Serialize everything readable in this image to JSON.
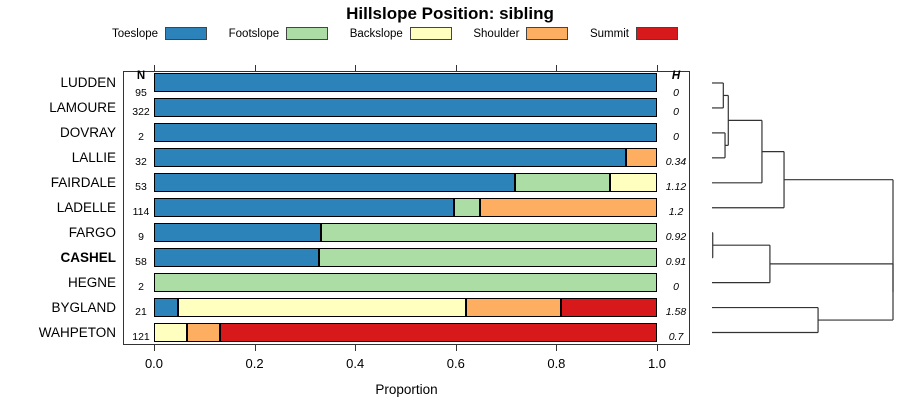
{
  "title": "Hillslope Position: sibling",
  "xlabel": "Proportion",
  "n_header": "N",
  "h_header": "H",
  "legend": [
    {
      "label": "Toeslope",
      "color": "#2B83BA"
    },
    {
      "label": "Footslope",
      "color": "#ABDDA4"
    },
    {
      "label": "Backslope",
      "color": "#FFFFBF"
    },
    {
      "label": "Shoulder",
      "color": "#FDAE61"
    },
    {
      "label": "Summit",
      "color": "#D7191C"
    }
  ],
  "chart_data": {
    "type": "bar",
    "subtype": "horizontal-stacked-proportion",
    "title": "Hillslope Position: sibling",
    "xlabel": "Proportion",
    "xlim": [
      0,
      1
    ],
    "x_ticks": [
      "0.0",
      "0.2",
      "0.4",
      "0.6",
      "0.8",
      "1.0"
    ],
    "categories": [
      "Toeslope",
      "Footslope",
      "Backslope",
      "Shoulder",
      "Summit"
    ],
    "colors": {
      "Toeslope": "#2B83BA",
      "Footslope": "#ABDDA4",
      "Backslope": "#FFFFBF",
      "Shoulder": "#FDAE61",
      "Summit": "#D7191C"
    },
    "rows": [
      {
        "name": "LUDDEN",
        "n": "95",
        "h": "0",
        "bold": false,
        "segments": [
          [
            "Toeslope",
            1.0
          ]
        ]
      },
      {
        "name": "LAMOURE",
        "n": "322",
        "h": "0",
        "bold": false,
        "segments": [
          [
            "Toeslope",
            1.0
          ]
        ]
      },
      {
        "name": "DOVRAY",
        "n": "2",
        "h": "0",
        "bold": false,
        "segments": [
          [
            "Toeslope",
            1.0
          ]
        ]
      },
      {
        "name": "LALLIE",
        "n": "32",
        "h": "0.34",
        "bold": false,
        "segments": [
          [
            "Toeslope",
            0.9375
          ],
          [
            "Shoulder",
            0.0625
          ]
        ]
      },
      {
        "name": "FAIRDALE",
        "n": "53",
        "h": "1.12",
        "bold": false,
        "segments": [
          [
            "Toeslope",
            0.717
          ],
          [
            "Footslope",
            0.189
          ],
          [
            "Backslope",
            0.094
          ]
        ]
      },
      {
        "name": "LADELLE",
        "n": "114",
        "h": "1.2",
        "bold": false,
        "segments": [
          [
            "Toeslope",
            0.596
          ],
          [
            "Footslope",
            0.053
          ],
          [
            "Shoulder",
            0.351
          ]
        ]
      },
      {
        "name": "FARGO",
        "n": "9",
        "h": "0.92",
        "bold": false,
        "segments": [
          [
            "Toeslope",
            0.333
          ],
          [
            "Footslope",
            0.667
          ]
        ]
      },
      {
        "name": "CASHEL",
        "n": "58",
        "h": "0.91",
        "bold": true,
        "segments": [
          [
            "Toeslope",
            0.328
          ],
          [
            "Footslope",
            0.672
          ]
        ]
      },
      {
        "name": "HEGNE",
        "n": "2",
        "h": "0",
        "bold": false,
        "segments": [
          [
            "Footslope",
            1.0
          ]
        ]
      },
      {
        "name": "BYGLAND",
        "n": "21",
        "h": "1.58",
        "bold": false,
        "segments": [
          [
            "Toeslope",
            0.048
          ],
          [
            "Backslope",
            0.572
          ],
          [
            "Shoulder",
            0.19
          ],
          [
            "Summit",
            0.19
          ]
        ]
      },
      {
        "name": "WAHPETON",
        "n": "121",
        "h": "0.7",
        "bold": false,
        "segments": [
          [
            "Backslope",
            0.066
          ],
          [
            "Shoulder",
            0.066
          ],
          [
            "Summit",
            0.868
          ]
        ]
      }
    ],
    "dendrogram": {
      "orientation": "right",
      "merges": [
        {
          "id": "m1",
          "a": "LUDDEN",
          "b": "LAMOURE",
          "h": 0.0625
        },
        {
          "id": "m2",
          "a": "DOVRAY",
          "b": "LALLIE",
          "h": 0.072
        },
        {
          "id": "m3",
          "a": "m1",
          "b": "m2",
          "h": 0.09
        },
        {
          "id": "m4",
          "a": "m3",
          "b": "FAIRDALE",
          "h": 0.276
        },
        {
          "id": "m5",
          "a": "m4",
          "b": "LADELLE",
          "h": 0.398
        },
        {
          "id": "m6",
          "a": "FARGO",
          "b": "CASHEL",
          "h": 0.004
        },
        {
          "id": "m7",
          "a": "m6",
          "b": "HEGNE",
          "h": 0.32
        },
        {
          "id": "m8",
          "a": "BYGLAND",
          "b": "WAHPETON",
          "h": 0.586
        },
        {
          "id": "m9",
          "a": "m7",
          "b": "m8",
          "h": 1.0
        },
        {
          "id": "m10",
          "a": "m5",
          "b": "m9",
          "h": 1.0
        }
      ]
    }
  }
}
